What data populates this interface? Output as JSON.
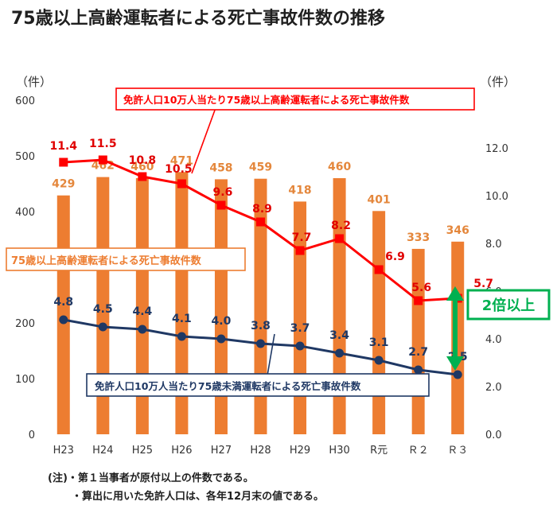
{
  "title": "75歳以上高齢運転者による死亡事故件数の推移",
  "notes": [
    "(注)・第１当事者が原付以上の件数である。",
    "・算出に用いた免許人口は、各年12月末の値である。"
  ],
  "colors": {
    "bar": "#ed7d31",
    "red": "#ff0000",
    "navy": "#1f3864",
    "green": "#00b050",
    "text": "#1f1f1f",
    "bar_label": "#e4873c",
    "red_label": "#e00000",
    "navy_label": "#1f3864"
  },
  "callout": {
    "label": "2倍以上"
  },
  "chart_data": {
    "type": "bar",
    "categories": [
      "H23",
      "H24",
      "H25",
      "H26",
      "H27",
      "H28",
      "H29",
      "H30",
      "R元",
      "Ｒ２",
      "Ｒ３"
    ],
    "left_axis": {
      "unit": "（件）",
      "ylim": [
        0,
        600
      ],
      "ticks": [
        0,
        100,
        200,
        300,
        400,
        500,
        600
      ],
      "tick_labels": [
        "0",
        "100",
        "200",
        "",
        "400",
        "500",
        "600"
      ]
    },
    "right_axis": {
      "unit": "（件）",
      "ylim": [
        0,
        14
      ],
      "ticks": [
        0,
        2,
        4,
        6,
        8,
        10,
        12
      ],
      "tick_labels": [
        "0.0",
        "2.0",
        "4.0",
        "6.0",
        "8.0",
        "10.0",
        "12.0"
      ]
    },
    "series": [
      {
        "name": "75歳以上高齢運転者による死亡事故件数",
        "kind": "bar",
        "axis": "left",
        "values": [
          429,
          462,
          460,
          471,
          458,
          459,
          418,
          460,
          401,
          333,
          346
        ],
        "labels": [
          "429",
          "462",
          "460",
          "471",
          "458",
          "459",
          "418",
          "460",
          "401",
          "333",
          "346"
        ]
      },
      {
        "name": "免許人口10万人当たり75歳以上高齢運転者による死亡事故件数",
        "kind": "line",
        "axis": "right",
        "values": [
          11.4,
          11.5,
          10.8,
          10.5,
          9.6,
          8.9,
          7.7,
          8.2,
          6.9,
          5.6,
          5.7
        ],
        "labels": [
          "11.4",
          "11.5",
          "10.8",
          "10.5",
          "9.6",
          "8.9",
          "7.7",
          "8.2",
          "6.9",
          "5.6",
          "5.7"
        ]
      },
      {
        "name": "免許人口10万人当たり75歳未満運転者による死亡事故件数",
        "kind": "line",
        "axis": "right",
        "values": [
          4.8,
          4.5,
          4.4,
          4.1,
          4.0,
          3.8,
          3.7,
          3.4,
          3.1,
          2.7,
          2.5
        ],
        "labels": [
          "4.8",
          "4.5",
          "4.4",
          "4.1",
          "4.0",
          "3.8",
          "3.7",
          "3.4",
          "3.1",
          "2.7",
          "2.5"
        ]
      }
    ]
  }
}
